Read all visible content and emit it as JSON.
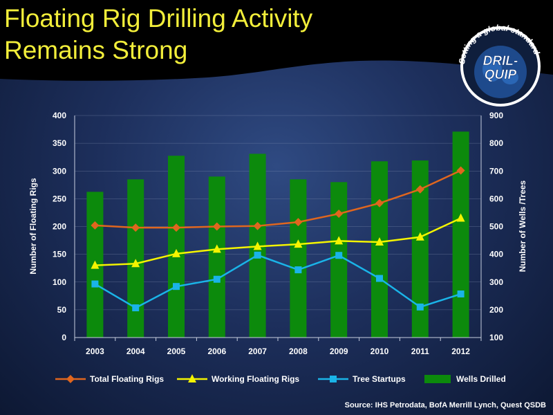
{
  "title_line1": "Floating Rig Drilling Activity",
  "title_line2": "Remains Strong",
  "logo": {
    "tagline": "Setting a global standard",
    "brand_line1": "DRIL-",
    "brand_line2": "QUIP"
  },
  "source": "Source:  IHS Petrodata, BofA Merrill Lynch, Quest QSDB",
  "colors": {
    "title": "#f2ee3a",
    "total": "#e0661e",
    "working": "#f4f400",
    "tree": "#1ab4e8",
    "wells": "#0c8a0c",
    "axis_text": "#ffffff"
  },
  "chart_data": {
    "type": "bar+line",
    "categories": [
      "2003",
      "2004",
      "2005",
      "2006",
      "2007",
      "2008",
      "2009",
      "2010",
      "2011",
      "2012"
    ],
    "left_axis": {
      "label": "Number of Floating Rigs",
      "ylim": [
        0,
        400
      ],
      "ticks": [
        0,
        50,
        100,
        150,
        200,
        250,
        300,
        350,
        400
      ]
    },
    "right_axis": {
      "label": "Number of Wells /Trees",
      "ylim": [
        100,
        900
      ],
      "ticks": [
        100,
        200,
        300,
        400,
        500,
        600,
        700,
        800,
        900
      ]
    },
    "bars": {
      "name": "Wells Drilled",
      "axis": "right",
      "values": [
        625,
        670,
        755,
        680,
        762,
        670,
        660,
        735,
        738,
        842
      ]
    },
    "series": [
      {
        "name": "Total Floating Rigs",
        "axis": "left",
        "marker": "diamond",
        "values": [
          202,
          198,
          198,
          200,
          201,
          208,
          223,
          242,
          267,
          301
        ]
      },
      {
        "name": "Working Floating Rigs",
        "axis": "left",
        "marker": "triangle",
        "values": [
          130,
          133,
          151,
          159,
          164,
          168,
          174,
          172,
          181,
          215
        ]
      },
      {
        "name": "Tree Startups",
        "axis": "right",
        "marker": "square",
        "values": [
          293,
          207,
          284,
          310,
          397,
          344,
          396,
          313,
          210,
          257
        ]
      }
    ],
    "legend": [
      "Total Floating Rigs",
      "Working Floating Rigs",
      "Tree Startups",
      "Wells Drilled"
    ],
    "legend_position": "bottom",
    "grid": true
  }
}
